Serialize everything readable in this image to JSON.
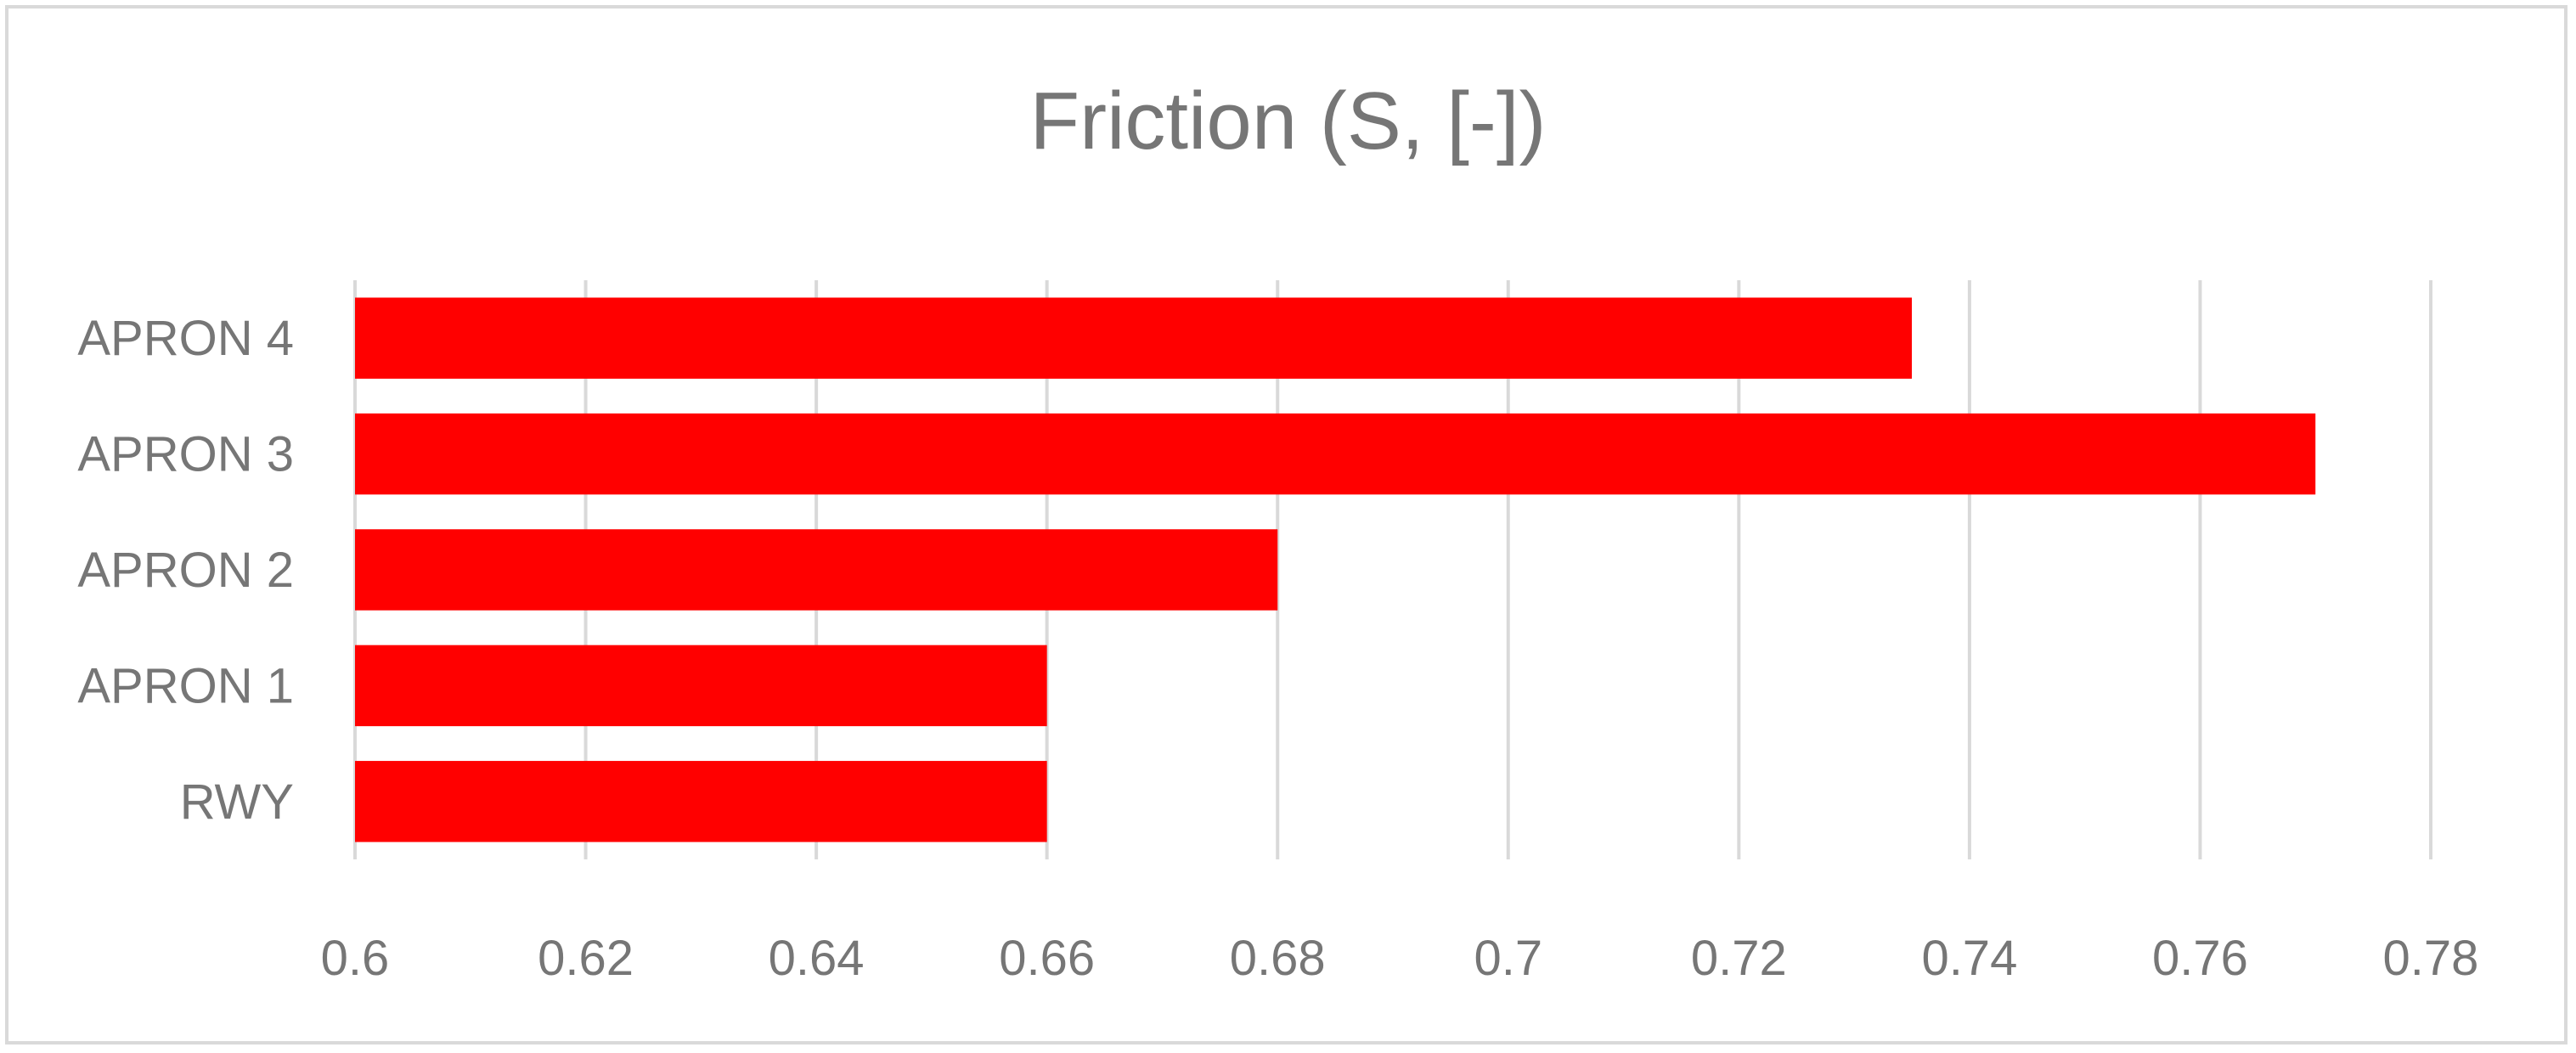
{
  "chart_data": {
    "type": "bar",
    "orientation": "horizontal",
    "title": "Friction (S, [-])",
    "xlabel": "",
    "ylabel": "",
    "categories": [
      "APRON 4",
      "APRON 3",
      "APRON 2",
      "APRON 1",
      "RWY"
    ],
    "values": [
      0.735,
      0.77,
      0.68,
      0.66,
      0.66
    ],
    "xlim": [
      0.6,
      0.78
    ],
    "xticks": [
      "0.6",
      "0.62",
      "0.64",
      "0.66",
      "0.68",
      "0.7",
      "0.72",
      "0.74",
      "0.76",
      "0.78"
    ],
    "grid": "vertical",
    "legend": "none",
    "bar_color": "#ff0000",
    "text_color": "#767676",
    "grid_color": "#d9d9d9"
  }
}
